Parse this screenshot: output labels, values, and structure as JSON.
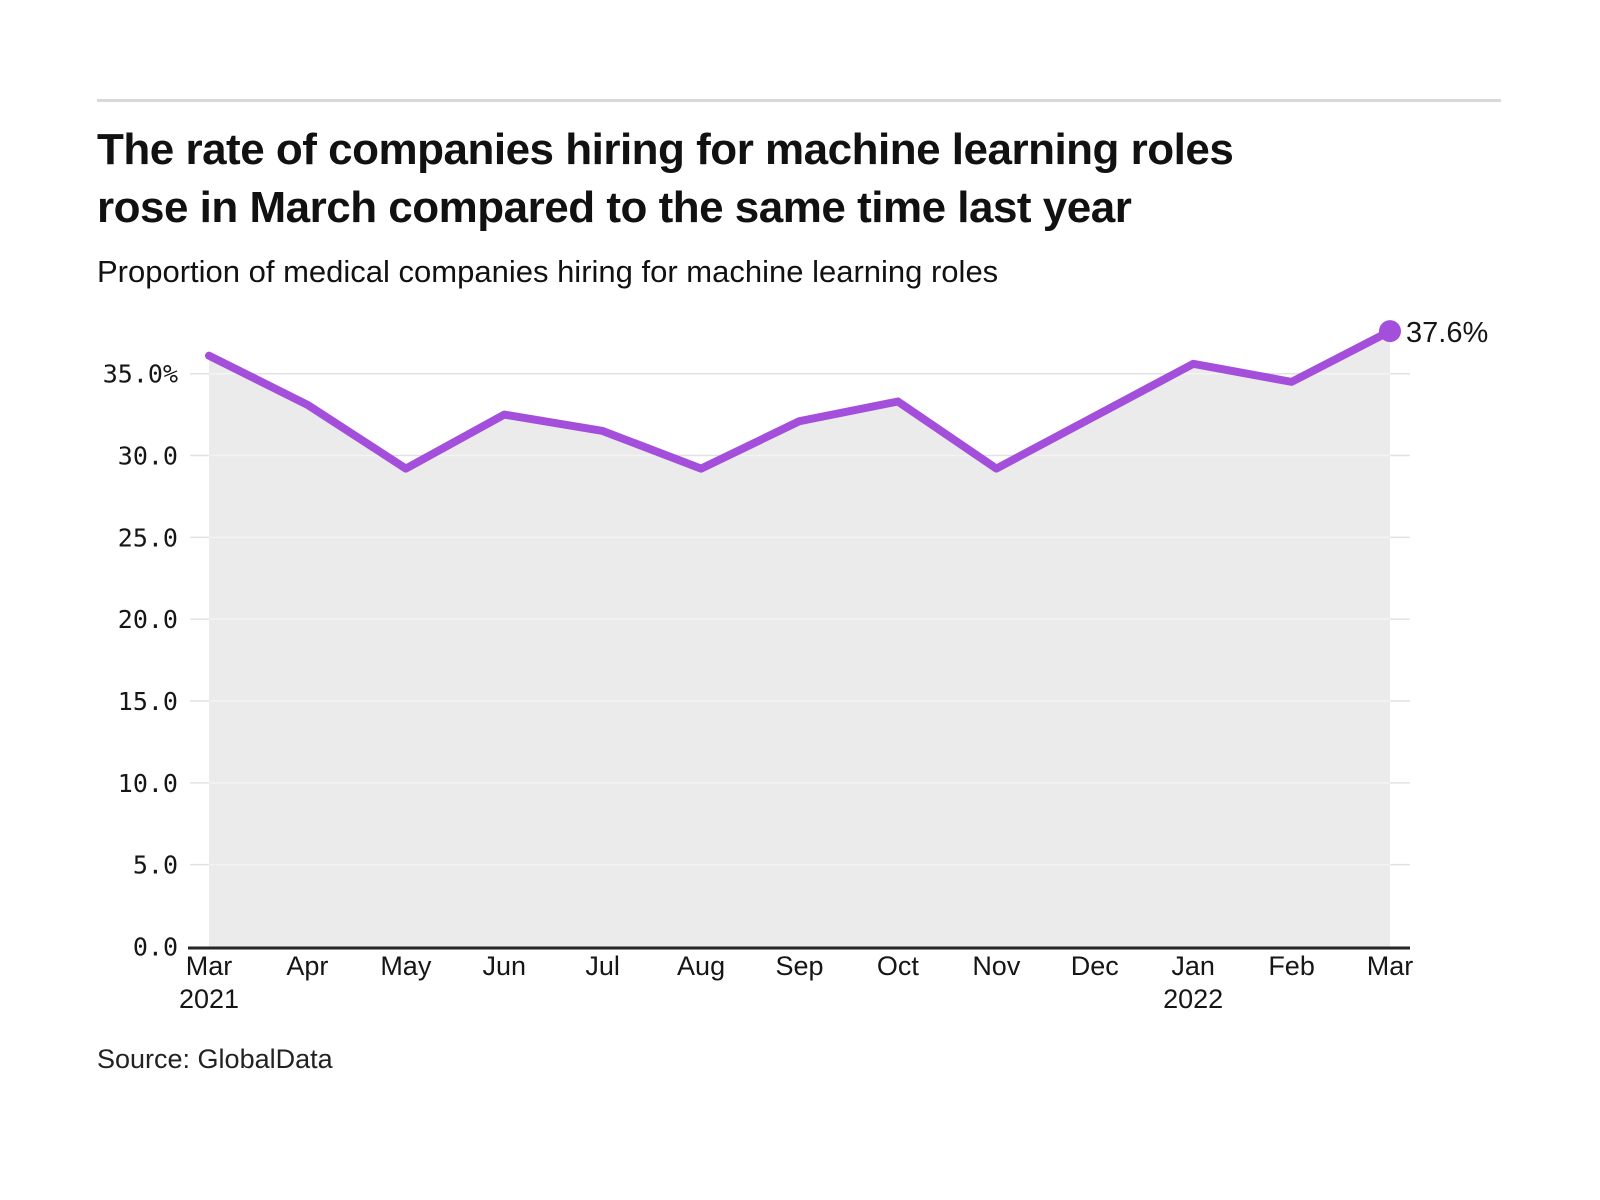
{
  "page": {
    "title_line1": "The rate of companies hiring for machine learning roles",
    "title_line2": "rose in March compared to the same time last year",
    "subtitle": "Proportion of medical companies hiring for machine learning roles",
    "source": "Source: GlobalData",
    "end_label": "37.6%"
  },
  "colors": {
    "line": "#a44fdc",
    "marker": "#a44fdc",
    "area_fill": "#ebebeb",
    "gridline": "#e2e2e2",
    "gridline_over_area": "#f4f4f4",
    "axis": "#262626",
    "tick_text": "#161616",
    "divider": "#d9d9d9"
  },
  "chart_data": {
    "type": "line",
    "title": "The rate of companies hiring for machine learning roles rose in March compared to the same time last year",
    "subtitle": "Proportion of medical companies hiring for machine learning roles",
    "source": "Source: GlobalData",
    "categories": [
      {
        "month": "Mar",
        "year": "2021"
      },
      {
        "month": "Apr"
      },
      {
        "month": "May"
      },
      {
        "month": "Jun"
      },
      {
        "month": "Jul"
      },
      {
        "month": "Aug"
      },
      {
        "month": "Sep"
      },
      {
        "month": "Oct"
      },
      {
        "month": "Nov"
      },
      {
        "month": "Dec"
      },
      {
        "month": "Jan",
        "year": "2022"
      },
      {
        "month": "Feb"
      },
      {
        "month": "Mar"
      }
    ],
    "series": [
      {
        "name": "Proportion of medical companies hiring for machine learning roles (%)",
        "values": [
          36.1,
          33.1,
          29.2,
          32.5,
          31.5,
          29.2,
          32.1,
          33.3,
          29.2,
          32.4,
          35.6,
          34.5,
          37.6
        ]
      }
    ],
    "last_point_label": "37.6%",
    "yticks": [
      0,
      5,
      10,
      15,
      20,
      25,
      30,
      35
    ],
    "ytick_labels": [
      "0.0",
      "5.0",
      "10.0",
      "15.0",
      "20.0",
      "25.0",
      "30.0",
      "35.0%"
    ],
    "ylim": [
      0,
      38.5
    ],
    "grid": "horizontal",
    "legend": "none",
    "area_under_line": true
  }
}
